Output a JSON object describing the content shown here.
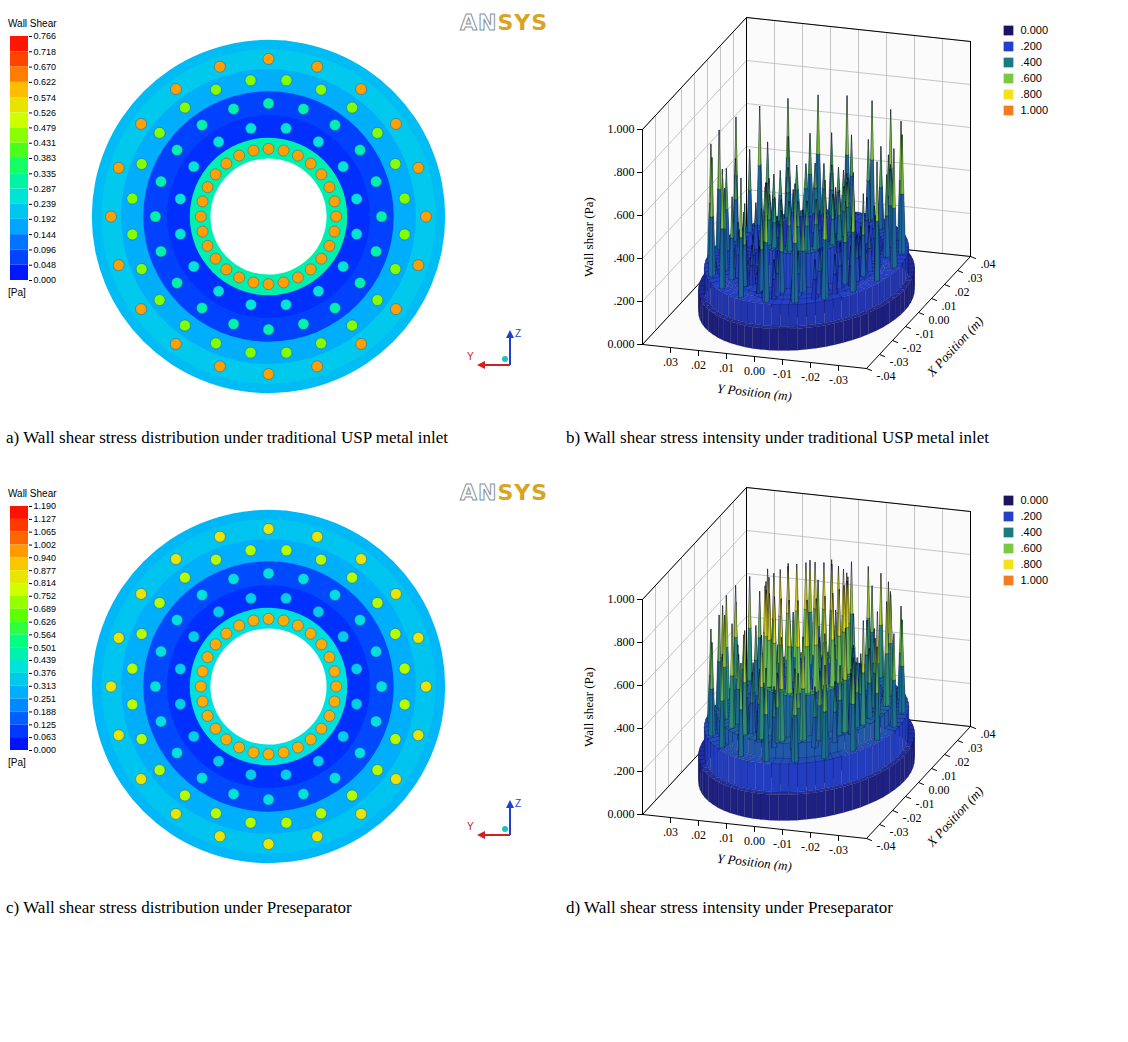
{
  "chart_data": [
    {
      "type": "contour",
      "caption": "a) Wall shear stress distribution under traditional USP metal inlet",
      "logo": "ANSYS",
      "axis_triad": [
        "Z",
        "Y"
      ],
      "colorbar": {
        "title": "Wall Shear",
        "unit": "[Pa]",
        "range": [
          0,
          0.766
        ],
        "ticks": [
          0.766,
          0.718,
          {
            "value": 0.67,
            "label": "0.670"
          },
          0.622,
          0.574,
          0.526,
          0.479,
          0.431,
          0.383,
          0.335,
          0.287,
          0.239,
          0.192,
          0.144,
          0.096,
          0.048,
          {
            "value": 0,
            "label": "0.000"
          }
        ]
      },
      "inner_radius": 0.0115,
      "outer_radius": 0.035,
      "background": 0.2,
      "rings": [
        {
          "radius": 0.0134,
          "count": 28,
          "peak": 0.62,
          "band": 0.3
        },
        {
          "radius": 0.0178,
          "count": 16,
          "peak": 0.26,
          "band": 0.05
        },
        {
          "radius": 0.0224,
          "count": 20,
          "peak": 0.3,
          "band": 0.07
        },
        {
          "radius": 0.0272,
          "count": 24,
          "peak": 0.45,
          "band": 0.18
        },
        {
          "radius": 0.0312,
          "count": 20,
          "peak": 0.62,
          "band": 0.22
        }
      ]
    },
    {
      "type": "surface3d",
      "caption": "b) Wall shear stress intensity under traditional USP metal inlet",
      "xlabel": "X Position (m)",
      "ylabel": "Y Position (m)",
      "zlabel": "Wall shear (Pa)",
      "xlim": [
        -0.04,
        0.04
      ],
      "ylim": [
        -0.04,
        0.04
      ],
      "zlim": [
        0,
        1
      ],
      "xticks": [
        {
          "value": 0.04,
          "label": ".04"
        },
        {
          "value": 0.03,
          "label": ".03"
        },
        {
          "value": 0.02,
          "label": ".02"
        },
        {
          "value": 0.01,
          "label": ".01"
        },
        {
          "value": 0,
          "label": "0.00"
        },
        {
          "value": -0.01,
          "label": "-.01"
        },
        {
          "value": -0.02,
          "label": "-.02"
        },
        {
          "value": -0.03,
          "label": "-.03"
        },
        {
          "value": -0.04,
          "label": "-.04"
        }
      ],
      "yticks": [
        {
          "value": 0.03,
          "label": ".03"
        },
        {
          "value": 0.02,
          "label": ".02"
        },
        {
          "value": 0.01,
          "label": ".01"
        },
        {
          "value": 0,
          "label": "0.00"
        },
        {
          "value": -0.01,
          "label": "-.01"
        },
        {
          "value": -0.02,
          "label": "-.02"
        },
        {
          "value": -0.03,
          "label": "-.03"
        }
      ],
      "zticks": [
        {
          "value": 0,
          "label": "0.000"
        },
        {
          "value": 0.2,
          "label": ".200"
        },
        {
          "value": 0.4,
          "label": ".400"
        },
        {
          "value": 0.6,
          "label": ".600"
        },
        {
          "value": 0.8,
          "label": ".800"
        },
        {
          "value": 1,
          "label": "1.000"
        }
      ],
      "legend": "top-right",
      "legend_items": [
        {
          "value": 0,
          "label": "0.000",
          "color": "#1b1464"
        },
        {
          "value": 0.2,
          "label": ".200",
          "color": "#2440c8"
        },
        {
          "value": 0.4,
          "label": ".400",
          "color": "#1a7a80"
        },
        {
          "value": 0.6,
          "label": ".600",
          "color": "#7ac943"
        },
        {
          "value": 0.8,
          "label": ".800",
          "color": "#f5e11a"
        },
        {
          "value": 1,
          "label": "1.000",
          "color": "#f47b20"
        }
      ],
      "inner_radius": 0.0115,
      "outer_radius": 0.035,
      "background": 0.1,
      "rings": [
        {
          "radius": 0.0134,
          "count": 28,
          "peak": 0.55,
          "band": 0.32
        },
        {
          "radius": 0.0178,
          "count": 16,
          "peak": 0.3,
          "band": 0.12
        },
        {
          "radius": 0.0224,
          "count": 20,
          "peak": 0.38,
          "band": 0.17
        },
        {
          "radius": 0.0272,
          "count": 24,
          "peak": 0.6,
          "band": 0.22
        },
        {
          "radius": 0.0312,
          "count": 20,
          "peak": 0.75,
          "band": 0.2
        }
      ]
    },
    {
      "type": "contour",
      "caption": "c) Wall shear stress distribution under Preseparator",
      "logo": "ANSYS",
      "axis_triad": [
        "Z",
        "Y"
      ],
      "colorbar": {
        "title": "Wall Shear",
        "unit": "[Pa]",
        "range": [
          0,
          1.19
        ],
        "ticks": [
          {
            "value": 1.19,
            "label": "1.190"
          },
          1.127,
          1.065,
          1.002,
          {
            "value": 0.94,
            "label": "0.940"
          },
          0.877,
          0.814,
          0.752,
          0.689,
          0.626,
          0.564,
          0.501,
          0.439,
          0.376,
          0.313,
          0.251,
          0.188,
          0.125,
          0.063,
          {
            "value": 0,
            "label": "0.000"
          }
        ]
      },
      "inner_radius": 0.0115,
      "outer_radius": 0.035,
      "background": 0.3,
      "rings": [
        {
          "radius": 0.0134,
          "count": 28,
          "peak": 0.95,
          "band": 0.4
        },
        {
          "radius": 0.0178,
          "count": 16,
          "peak": 0.35,
          "band": 0.08
        },
        {
          "radius": 0.0224,
          "count": 20,
          "peak": 0.4,
          "band": 0.12
        },
        {
          "radius": 0.0272,
          "count": 24,
          "peak": 0.75,
          "band": 0.28
        },
        {
          "radius": 0.0312,
          "count": 20,
          "peak": 0.85,
          "band": 0.33
        }
      ]
    },
    {
      "type": "surface3d",
      "caption": "d) Wall shear stress intensity under Preseparator",
      "xlabel": "X Position (m)",
      "ylabel": "Y Position (m)",
      "zlabel": "Wall shear (Pa)",
      "xlim": [
        -0.04,
        0.04
      ],
      "ylim": [
        -0.04,
        0.04
      ],
      "zlim": [
        0,
        1
      ],
      "xticks": [
        {
          "value": 0.04,
          "label": ".04"
        },
        {
          "value": 0.03,
          "label": ".03"
        },
        {
          "value": 0.02,
          "label": ".02"
        },
        {
          "value": 0.01,
          "label": ".01"
        },
        {
          "value": 0,
          "label": "0.00"
        },
        {
          "value": -0.01,
          "label": "-.01"
        },
        {
          "value": -0.02,
          "label": "-.02"
        },
        {
          "value": -0.03,
          "label": "-.03"
        },
        {
          "value": -0.04,
          "label": "-.04"
        }
      ],
      "yticks": [
        {
          "value": 0.03,
          "label": ".03"
        },
        {
          "value": 0.02,
          "label": ".02"
        },
        {
          "value": 0.01,
          "label": ".01"
        },
        {
          "value": 0,
          "label": "0.00"
        },
        {
          "value": -0.01,
          "label": "-.01"
        },
        {
          "value": -0.02,
          "label": "-.02"
        },
        {
          "value": -0.03,
          "label": "-.03"
        }
      ],
      "zticks": [
        {
          "value": 0,
          "label": "0.000"
        },
        {
          "value": 0.2,
          "label": ".200"
        },
        {
          "value": 0.4,
          "label": ".400"
        },
        {
          "value": 0.6,
          "label": ".600"
        },
        {
          "value": 0.8,
          "label": ".800"
        },
        {
          "value": 1,
          "label": "1.000"
        }
      ],
      "legend": "top-right",
      "legend_items": [
        {
          "value": 0,
          "label": "0.000",
          "color": "#1b1464"
        },
        {
          "value": 0.2,
          "label": ".200",
          "color": "#2440c8"
        },
        {
          "value": 0.4,
          "label": ".400",
          "color": "#1a7a80"
        },
        {
          "value": 0.6,
          "label": ".600",
          "color": "#7ac943"
        },
        {
          "value": 0.8,
          "label": ".800",
          "color": "#f5e11a"
        },
        {
          "value": 1,
          "label": "1.000",
          "color": "#f47b20"
        }
      ],
      "inner_radius": 0.0115,
      "outer_radius": 0.035,
      "background": 0.12,
      "rings": [
        {
          "radius": 0.0134,
          "count": 28,
          "peak": 0.88,
          "band": 0.45
        },
        {
          "radius": 0.0178,
          "count": 16,
          "peak": 0.5,
          "band": 0.22
        },
        {
          "radius": 0.0224,
          "count": 20,
          "peak": 0.6,
          "band": 0.28
        },
        {
          "radius": 0.0272,
          "count": 24,
          "peak": 0.8,
          "band": 0.32
        },
        {
          "radius": 0.0312,
          "count": 20,
          "peak": 0.68,
          "band": 0.25
        }
      ]
    }
  ]
}
